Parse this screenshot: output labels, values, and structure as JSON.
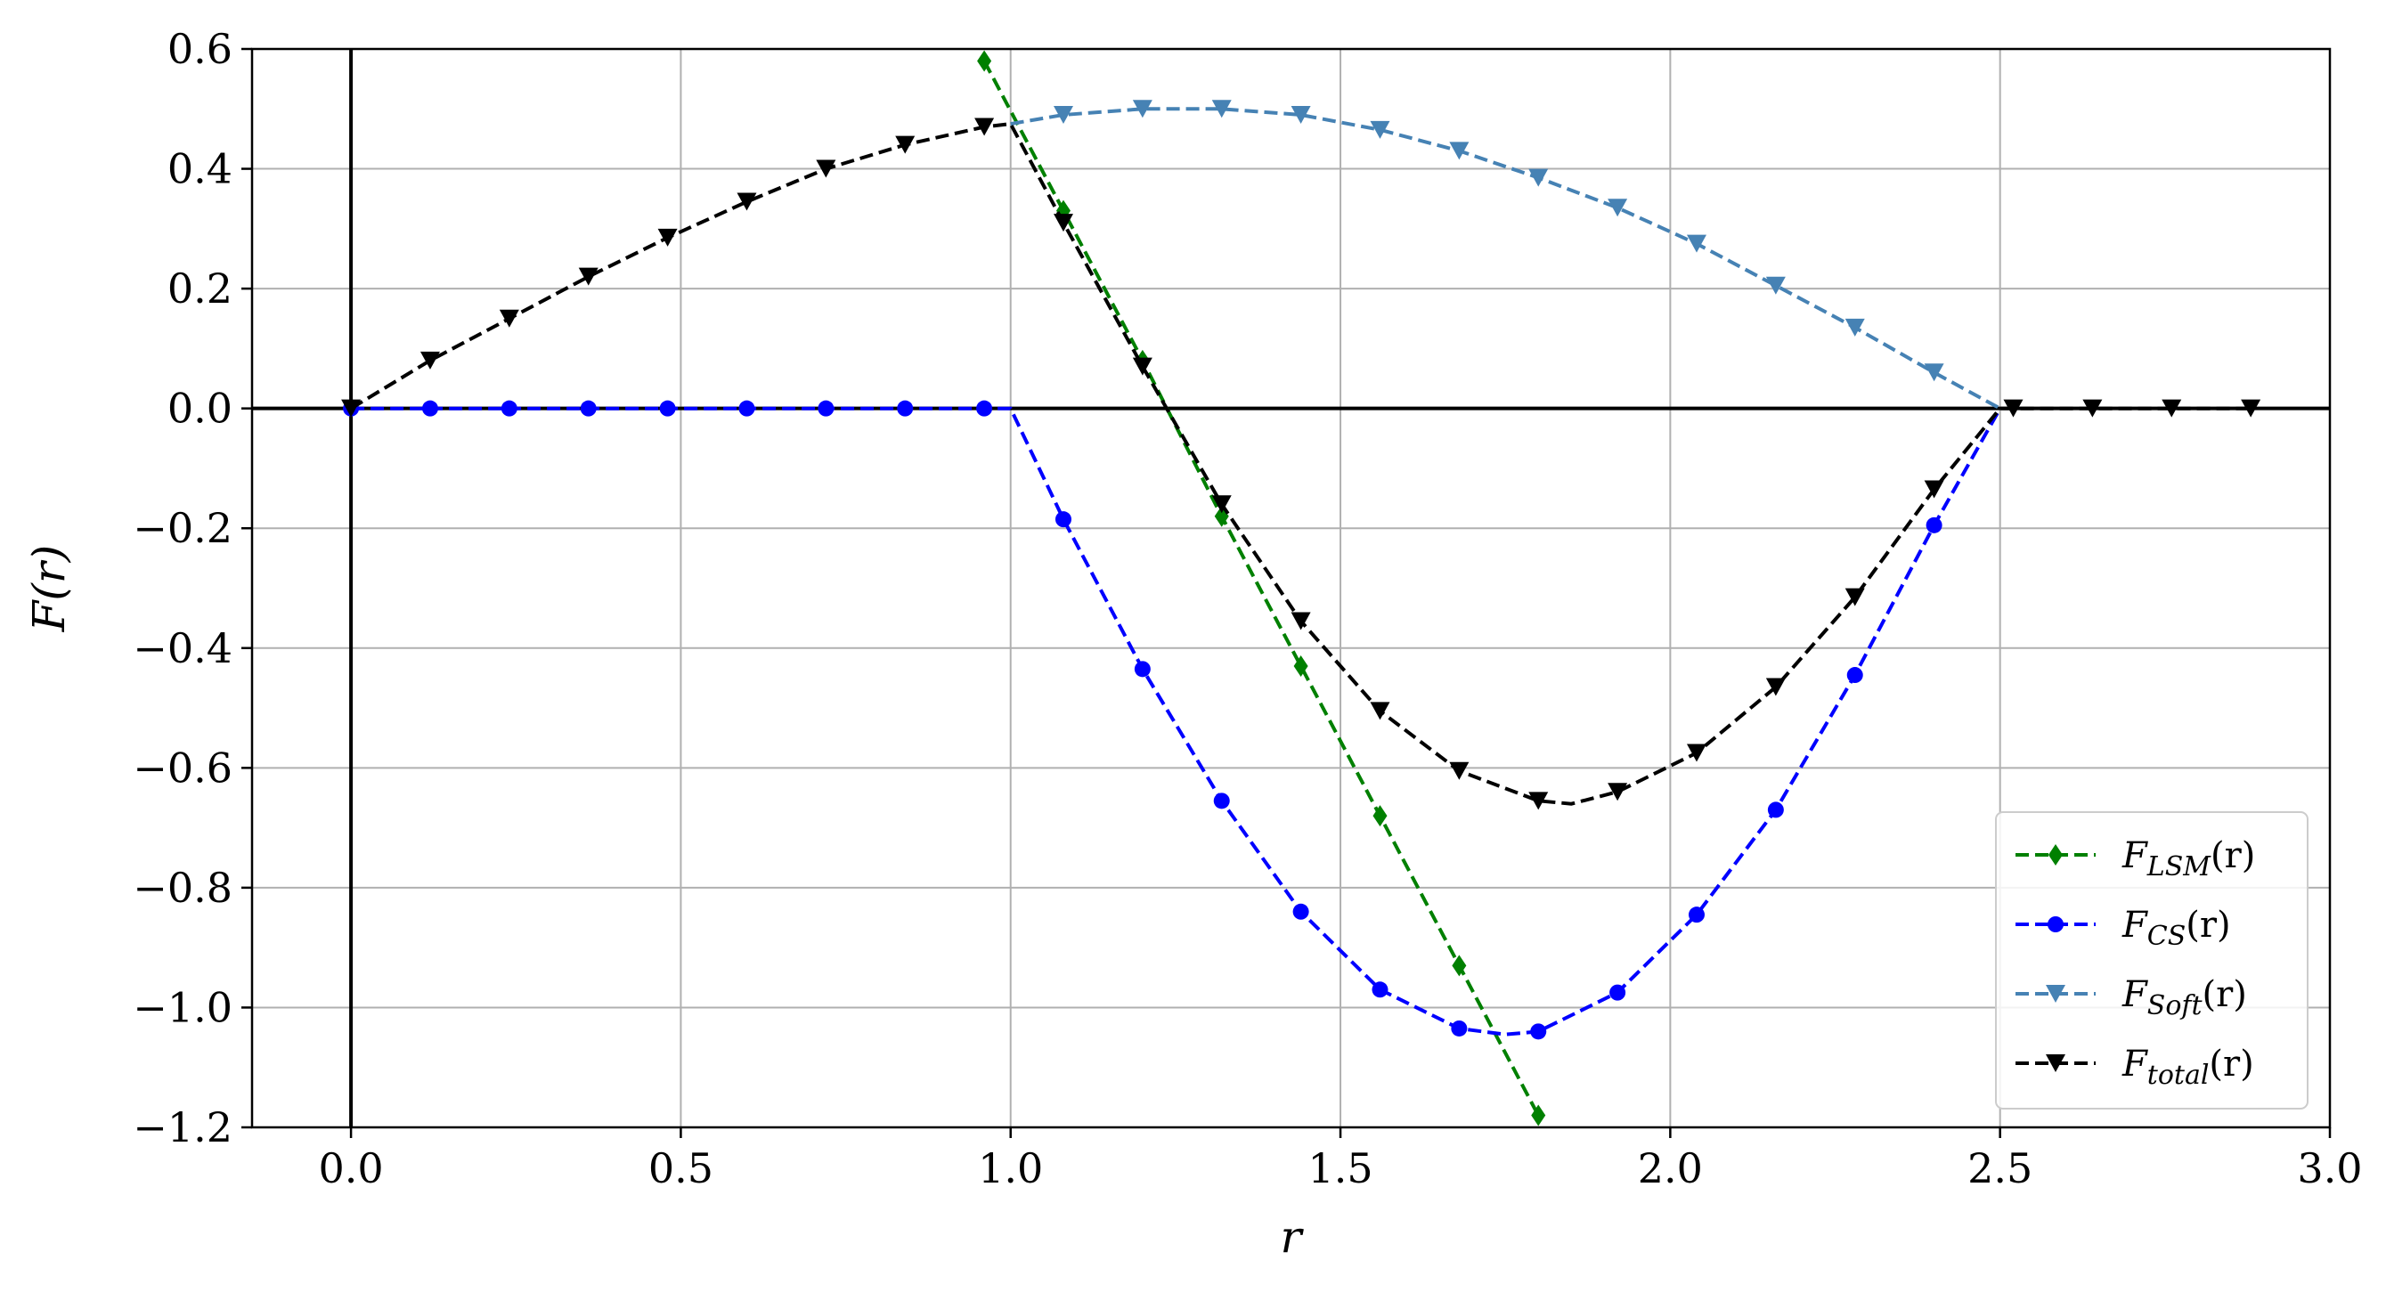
{
  "chart_data": {
    "type": "line",
    "title": "",
    "xlabel": "r",
    "ylabel": "F(r)",
    "xlim": [
      -0.15,
      3.0
    ],
    "ylim": [
      -1.2,
      0.6
    ],
    "xticks": [
      0.0,
      0.5,
      1.0,
      1.5,
      2.0,
      2.5,
      3.0
    ],
    "yticks": [
      0.6,
      0.4,
      0.2,
      0.0,
      -0.2,
      -0.4,
      -0.6,
      -0.8,
      -1.0,
      -1.2
    ],
    "xtick_labels": [
      "0.0",
      "0.5",
      "1.0",
      "1.5",
      "2.0",
      "2.5",
      "3.0"
    ],
    "ytick_labels": [
      "0.6",
      "0.4",
      "0.2",
      "0.0",
      "−0.2",
      "−0.4",
      "−0.6",
      "−0.8",
      "−1.0",
      "−1.2"
    ],
    "grid": true,
    "legend_position": "bottom-right",
    "series": [
      {
        "name": "F_LSM(r)",
        "name_main": "F",
        "name_sub": "LSM",
        "name_tail": "(r)",
        "color": "#008000",
        "marker": "diamond",
        "x": [
          0.96,
          1.08,
          1.2,
          1.32,
          1.44,
          1.56,
          1.68,
          1.8
        ],
        "y": [
          0.58,
          0.33,
          0.08,
          -0.18,
          -0.43,
          -0.68,
          -0.93,
          -1.18
        ]
      },
      {
        "name": "F_CS(r)",
        "name_main": "F",
        "name_sub": "CS",
        "name_tail": "(r)",
        "color": "#0000ff",
        "marker": "circle",
        "x": [
          0.0,
          0.12,
          0.24,
          0.36,
          0.48,
          0.6,
          0.72,
          0.84,
          0.96,
          1.0,
          1.08,
          1.2,
          1.32,
          1.44,
          1.56,
          1.68,
          1.75,
          1.8,
          1.92,
          2.04,
          2.16,
          2.28,
          2.4,
          2.5
        ],
        "y": [
          0.0,
          0.0,
          0.0,
          0.0,
          0.0,
          0.0,
          0.0,
          0.0,
          0.0,
          0.0,
          -0.185,
          -0.435,
          -0.655,
          -0.84,
          -0.97,
          -1.035,
          -1.045,
          -1.04,
          -0.975,
          -0.845,
          -0.67,
          -0.445,
          -0.195,
          0.0
        ],
        "marker_x": [
          0.0,
          0.12,
          0.24,
          0.36,
          0.48,
          0.6,
          0.72,
          0.84,
          0.96,
          1.08,
          1.2,
          1.32,
          1.44,
          1.56,
          1.68,
          1.8,
          1.92,
          2.04,
          2.16,
          2.28,
          2.4
        ],
        "marker_y": [
          0.0,
          0.0,
          0.0,
          0.0,
          0.0,
          0.0,
          0.0,
          0.0,
          0.0,
          -0.185,
          -0.435,
          -0.655,
          -0.84,
          -0.97,
          -1.035,
          -1.04,
          -0.975,
          -0.845,
          -0.67,
          -0.445,
          -0.195
        ]
      },
      {
        "name": "F_Soft(r)",
        "name_main": "F",
        "name_sub": "Soft",
        "name_tail": "(r)",
        "color": "#4682b4",
        "marker": "triangle-down",
        "x": [
          1.0,
          1.08,
          1.2,
          1.32,
          1.44,
          1.56,
          1.68,
          1.8,
          1.92,
          2.04,
          2.16,
          2.28,
          2.4,
          2.5
        ],
        "y": [
          0.475,
          0.49,
          0.5,
          0.5,
          0.49,
          0.465,
          0.43,
          0.385,
          0.335,
          0.275,
          0.205,
          0.135,
          0.06,
          0.0
        ],
        "marker_x": [
          1.08,
          1.2,
          1.32,
          1.44,
          1.56,
          1.68,
          1.8,
          1.92,
          2.04,
          2.16,
          2.28,
          2.4
        ],
        "marker_y": [
          0.49,
          0.5,
          0.5,
          0.49,
          0.465,
          0.43,
          0.385,
          0.335,
          0.275,
          0.205,
          0.135,
          0.06
        ]
      },
      {
        "name": "F_total(r)",
        "name_main": "F",
        "name_sub": "total",
        "name_tail": "(r)",
        "color": "#000000",
        "marker": "triangle-down",
        "x": [
          0.0,
          0.12,
          0.24,
          0.36,
          0.48,
          0.6,
          0.72,
          0.84,
          0.96,
          1.0,
          1.08,
          1.2,
          1.32,
          1.44,
          1.56,
          1.68,
          1.8,
          1.85,
          1.92,
          2.04,
          2.16,
          2.28,
          2.4,
          2.5,
          2.52,
          2.64,
          2.76,
          2.88
        ],
        "y": [
          0.0,
          0.08,
          0.15,
          0.22,
          0.285,
          0.345,
          0.4,
          0.44,
          0.47,
          0.475,
          0.31,
          0.07,
          -0.16,
          -0.355,
          -0.505,
          -0.605,
          -0.655,
          -0.66,
          -0.64,
          -0.575,
          -0.465,
          -0.315,
          -0.135,
          0.0,
          0.0,
          0.0,
          0.0,
          0.0
        ],
        "marker_x": [
          0.0,
          0.12,
          0.24,
          0.36,
          0.48,
          0.6,
          0.72,
          0.84,
          0.96,
          1.08,
          1.2,
          1.32,
          1.44,
          1.56,
          1.68,
          1.8,
          1.92,
          2.04,
          2.16,
          2.28,
          2.4,
          2.52,
          2.64,
          2.76,
          2.88
        ],
        "marker_y": [
          0.0,
          0.08,
          0.15,
          0.22,
          0.285,
          0.345,
          0.4,
          0.44,
          0.47,
          0.31,
          0.07,
          -0.16,
          -0.355,
          -0.505,
          -0.605,
          -0.655,
          -0.64,
          -0.575,
          -0.465,
          -0.315,
          -0.135,
          0.0,
          0.0,
          0.0,
          0.0
        ]
      }
    ]
  }
}
